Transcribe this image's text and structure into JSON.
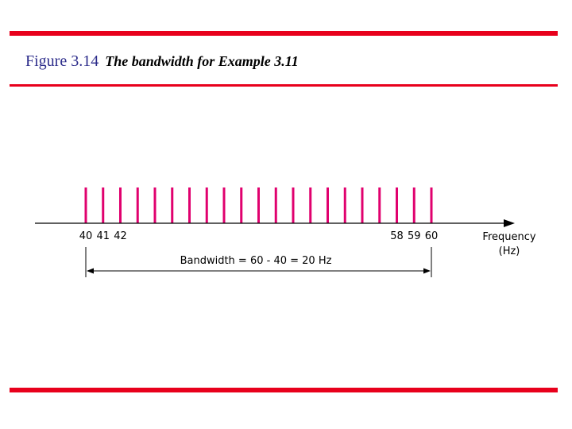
{
  "title": {
    "figure_number": "Figure 3.14",
    "caption": "The bandwidth for Example 3.11"
  },
  "diagram": {
    "frequencies": [
      40,
      41,
      42,
      43,
      44,
      45,
      46,
      47,
      48,
      49,
      50,
      51,
      52,
      53,
      54,
      55,
      56,
      57,
      58,
      59,
      60
    ],
    "tick_labels": [
      "40",
      "41",
      "42",
      "58",
      "59",
      "60"
    ],
    "axis_label_line1": "Frequency",
    "axis_label_line2": "(Hz)",
    "bandwidth_text": "Bandwidth = 60 - 40 = 20 Hz",
    "spike_color": "#e0006e",
    "rule_color": "#e8001c"
  }
}
